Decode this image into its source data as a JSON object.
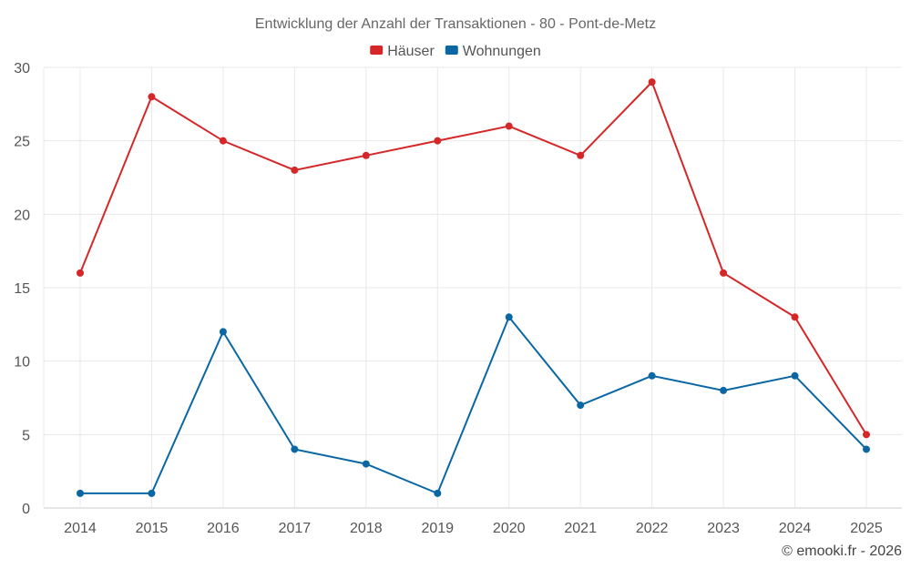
{
  "chart_data": {
    "type": "line",
    "title": "Entwicklung der Anzahl der Transaktionen - 80 - Pont-de-Metz",
    "categories": [
      "2014",
      "2015",
      "2016",
      "2017",
      "2018",
      "2019",
      "2020",
      "2021",
      "2022",
      "2023",
      "2024",
      "2025"
    ],
    "series": [
      {
        "name": "Häuser",
        "color": "#d62728",
        "values": [
          16,
          28,
          25,
          23,
          24,
          25,
          26,
          24,
          29,
          16,
          13,
          5
        ]
      },
      {
        "name": "Wohnungen",
        "color": "#0a67a3",
        "values": [
          1,
          1,
          12,
          4,
          3,
          1,
          13,
          7,
          9,
          8,
          9,
          4
        ]
      }
    ],
    "ylim": [
      0,
      30
    ],
    "yticks": [
      0,
      5,
      10,
      15,
      20,
      25,
      30
    ],
    "xlabel": "",
    "ylabel": "",
    "grid": true,
    "legend": "top-center"
  },
  "credit": "© emooki.fr - 2026"
}
